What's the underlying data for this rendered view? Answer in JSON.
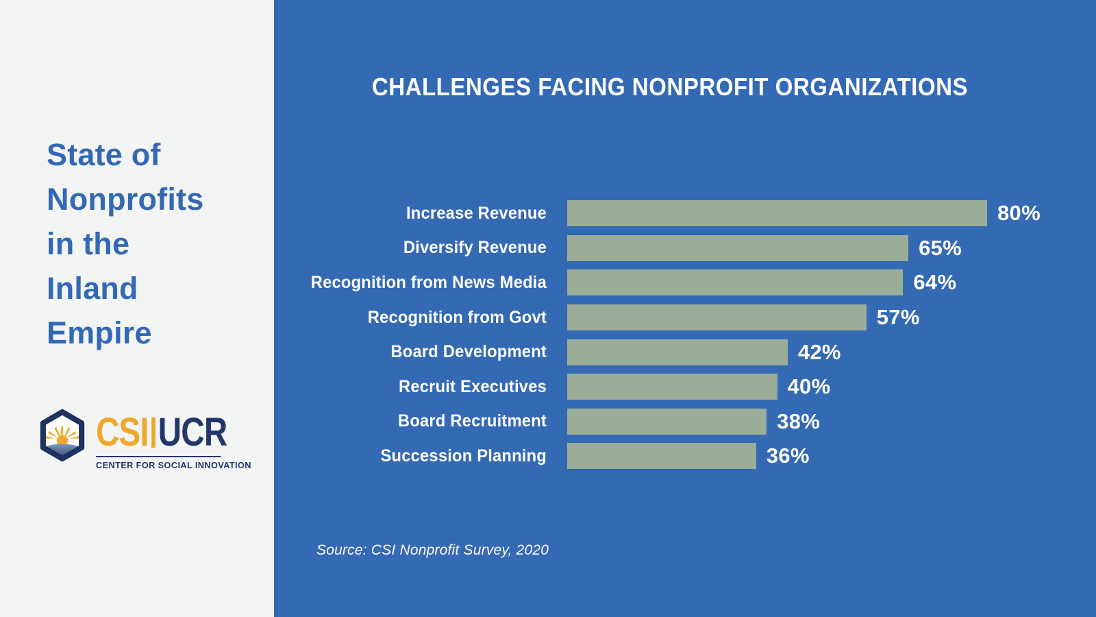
{
  "sidebar": {
    "title_lines": [
      "State of",
      "Nonprofits",
      "in the",
      "Inland",
      "Empire"
    ],
    "logo": {
      "icon": "sunrise-hexagon-icon",
      "csi": "CSI",
      "ucr": "UCR",
      "tagline": "CENTER FOR SOCIAL INNOVATION"
    }
  },
  "chart_data": {
    "type": "bar",
    "orientation": "horizontal",
    "title": "CHALLENGES FACING NONPROFIT ORGANIZATIONS",
    "categories": [
      "Increase Revenue",
      "Diversify Revenue",
      "Recognition from News Media",
      "Recognition from Govt",
      "Board Development",
      "Recruit Executives",
      "Board Recruitment",
      "Succession Planning"
    ],
    "values": [
      80,
      65,
      64,
      57,
      42,
      40,
      38,
      36
    ],
    "value_suffix": "%",
    "xlim": [
      0,
      100
    ],
    "grid": false,
    "legend": false,
    "source": "Source: CSI Nonprofit Survey, 2020",
    "colors": {
      "bar": "#9BAD98",
      "panel_background": "#3469B3",
      "sidebar_background": "#F3F5F4",
      "sidebar_title": "#3369B4",
      "logo_gold": "#F0A82A",
      "logo_navy": "#23376B",
      "text": "#FFFFFF"
    }
  }
}
